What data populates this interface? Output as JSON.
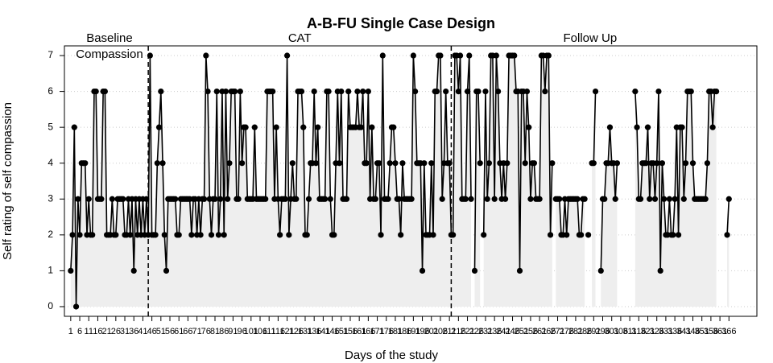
{
  "chart_data": {
    "type": "line",
    "title": "A-B-FU Single Case Design",
    "xlabel": "Days of the study",
    "ylabel": "Self rating of self compassion",
    "phases": [
      {
        "label": "Baseline",
        "sublabel": "Compassion",
        "start": 1,
        "end": 44
      },
      {
        "label": "CAT",
        "start": 44,
        "end": 212
      },
      {
        "label": "Follow Up",
        "start": 212,
        "end": 366
      }
    ],
    "x_start": 1,
    "xlim": [
      -2.5,
      381.5
    ],
    "ylim": [
      -0.27,
      7.27
    ],
    "yticks": [
      0,
      1,
      2,
      3,
      4,
      5,
      6,
      7
    ],
    "xticks": [
      1,
      6,
      11,
      16,
      21,
      26,
      31,
      36,
      41,
      46,
      51,
      56,
      61,
      66,
      71,
      76,
      81,
      86,
      91,
      96,
      101,
      106,
      111,
      116,
      121,
      126,
      131,
      136,
      141,
      146,
      151,
      156,
      161,
      166,
      171,
      176,
      181,
      186,
      191,
      196,
      201,
      206,
      211,
      216,
      221,
      226,
      231,
      236,
      241,
      246,
      251,
      256,
      261,
      266,
      271,
      276,
      281,
      286,
      291,
      296,
      301,
      306,
      311,
      316,
      321,
      326,
      331,
      336,
      341,
      346,
      351,
      356,
      361,
      366
    ],
    "grid": true,
    "color": "#000000",
    "fill_color": "#eeeeee",
    "values": [
      1,
      2,
      5,
      0,
      3,
      2,
      4,
      4,
      4,
      2,
      3,
      2,
      2,
      6,
      6,
      3,
      3,
      3,
      6,
      6,
      2,
      2,
      2,
      3,
      2,
      2,
      3,
      3,
      3,
      3,
      2,
      2,
      3,
      2,
      3,
      1,
      3,
      2,
      3,
      2,
      3,
      2,
      3,
      2,
      7,
      2,
      2,
      2,
      4,
      5,
      6,
      4,
      2,
      1,
      3,
      3,
      3,
      3,
      3,
      2,
      2,
      3,
      3,
      3,
      3,
      3,
      3,
      2,
      3,
      3,
      2,
      3,
      2,
      3,
      3,
      7,
      6,
      3,
      2,
      3,
      3,
      6,
      2,
      3,
      6,
      2,
      6,
      3,
      4,
      6,
      6,
      6,
      3,
      3,
      6,
      4,
      5,
      5,
      3,
      3,
      3,
      3,
      5,
      3,
      3,
      3,
      3,
      3,
      3,
      6,
      6,
      6,
      6,
      3,
      5,
      3,
      2,
      3,
      3,
      3,
      7,
      2,
      3,
      4,
      3,
      3,
      6,
      6,
      6,
      5,
      2,
      2,
      3,
      4,
      4,
      6,
      4,
      5,
      3,
      3,
      3,
      3,
      6,
      6,
      3,
      2,
      2,
      4,
      6,
      4,
      6,
      3,
      3,
      3,
      6,
      5,
      5,
      5,
      5,
      6,
      5,
      5,
      6,
      4,
      4,
      6,
      3,
      5,
      3,
      3,
      4,
      4,
      2,
      7,
      3,
      3,
      3,
      4,
      5,
      5,
      4,
      3,
      3,
      2,
      4,
      3,
      3,
      3,
      3,
      3,
      7,
      6,
      4,
      4,
      4,
      1,
      4,
      2,
      2,
      2,
      4,
      2,
      6,
      6,
      7,
      7,
      3,
      4,
      6,
      4,
      4,
      2,
      2,
      7,
      7,
      6,
      7,
      3,
      3,
      3,
      6,
      7,
      3,
      null,
      1,
      6,
      6,
      4,
      null,
      2,
      6,
      3,
      4,
      7,
      7,
      3,
      7,
      6,
      4,
      3,
      4,
      3,
      4,
      7,
      7,
      7,
      7,
      6,
      6,
      1,
      6,
      6,
      4,
      6,
      5,
      3,
      4,
      4,
      3,
      3,
      3,
      7,
      7,
      6,
      7,
      7,
      2,
      4,
      null,
      3,
      3,
      3,
      2,
      2,
      3,
      2,
      3,
      3,
      3,
      3,
      3,
      3,
      2,
      2,
      3,
      3,
      null,
      2,
      null,
      4,
      4,
      6,
      null,
      null,
      1,
      3,
      3,
      4,
      4,
      5,
      4,
      4,
      3,
      4,
      null,
      null,
      null,
      null,
      null,
      null,
      null,
      null,
      null,
      6,
      5,
      3,
      3,
      4,
      4,
      4,
      5,
      3,
      4,
      4,
      3,
      4,
      6,
      1,
      4,
      3,
      2,
      2,
      3,
      2,
      2,
      3,
      5,
      2,
      5,
      5,
      3,
      4,
      6,
      6,
      6,
      4,
      3,
      3,
      3,
      3,
      3,
      3,
      3,
      4,
      6,
      6,
      5,
      6,
      6,
      null,
      null,
      null,
      null,
      null,
      2,
      3
    ]
  }
}
